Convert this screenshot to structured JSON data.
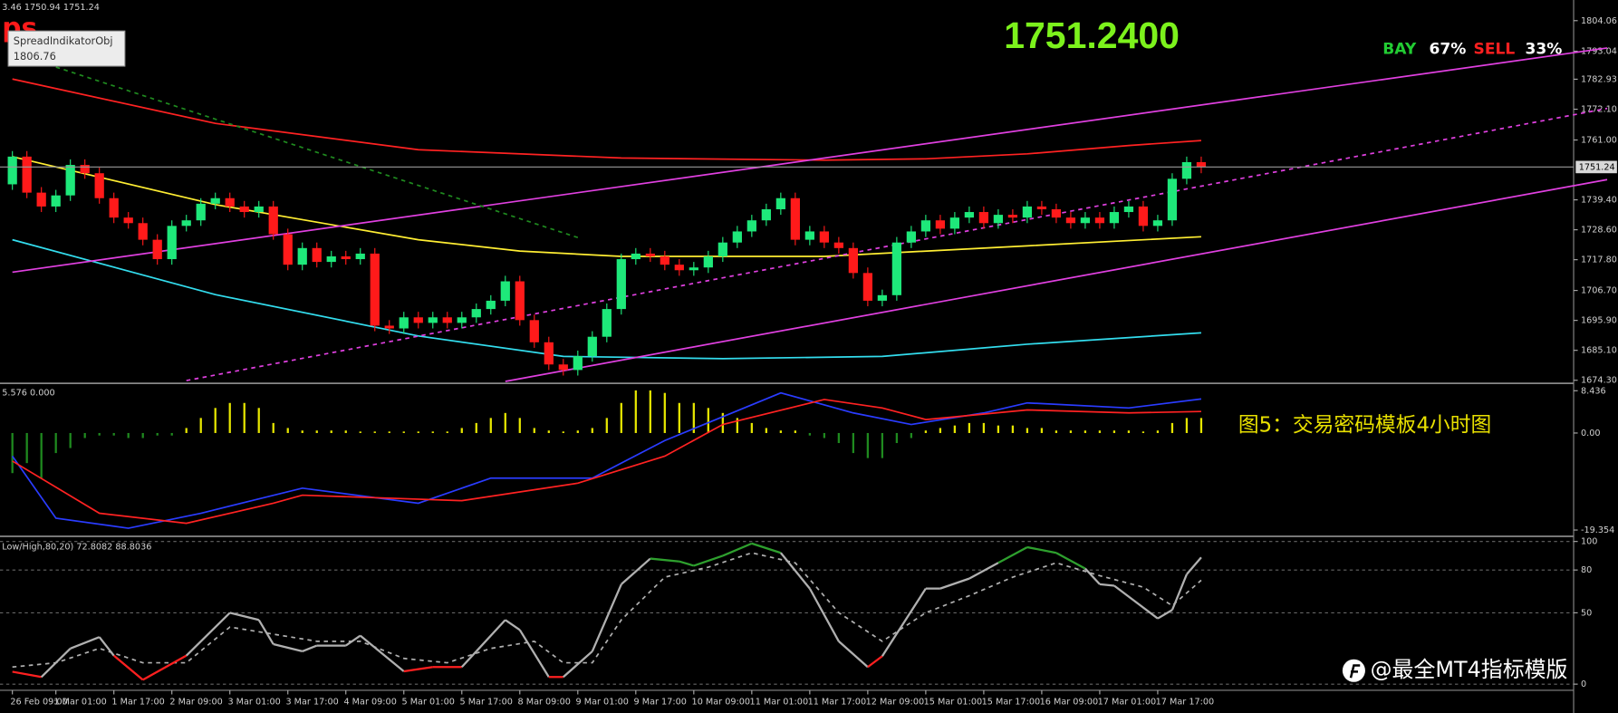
{
  "chart_data": [
    {
      "type": "candlestick",
      "header": "3.46 1750.94 1751.24",
      "indicator_label": "ps",
      "tooltip": {
        "title": "SpreadIndikatorObj",
        "value": "1806.76"
      },
      "price_display": "1751.2400",
      "sentiment": {
        "buy_label": "BAY",
        "buy": {
          "value": 67,
          "label": "67%"
        },
        "sell_label": "SELL",
        "sell": {
          "value": 33,
          "label": "33%"
        }
      },
      "categories": [
        "26 Feb 09:00",
        null,
        null,
        "1 Mar 01:00",
        null,
        null,
        null,
        "1 Mar 17:00",
        null,
        null,
        null,
        "2 Mar 09:00",
        null,
        null,
        null,
        "3 Mar 01:00",
        null,
        null,
        null,
        "3 Mar 17:00",
        null,
        null,
        null,
        "4 Mar 09:00",
        null,
        null,
        null,
        "5 Mar 01:00",
        null,
        null,
        null,
        "5 Mar 17:00",
        null,
        null,
        null,
        "8 Mar 09:00",
        null,
        null,
        null,
        "9 Mar 01:00",
        null,
        null,
        null,
        "9 Mar 17:00",
        null,
        null,
        null,
        "10 Mar 09:00",
        null,
        null,
        null,
        "11 Mar 01:00",
        null,
        null,
        null,
        "11 Mar 17:00",
        null,
        null,
        null,
        "12 Mar 09:00",
        null,
        null,
        null,
        "15 Mar 01:00",
        null,
        null,
        null,
        "15 Mar 17:00",
        null,
        null,
        null,
        "16 Mar 09:00",
        null,
        null,
        null,
        "17 Mar 01:00",
        null,
        null,
        null,
        "17 Mar 17:00",
        null,
        null,
        null
      ],
      "open": [
        1745,
        1755,
        1742,
        1737,
        1741,
        1752,
        1749,
        1740,
        1733,
        1731,
        1725,
        1718,
        1730,
        1732,
        1738,
        1740,
        1737,
        1735,
        1737,
        1727,
        1716,
        1722,
        1717,
        1719,
        1718,
        1720,
        1694,
        1693,
        1697,
        1695,
        1697,
        1695,
        1697,
        1700,
        1703,
        1710,
        1696,
        1688,
        1680,
        1678,
        1683,
        1690,
        1700,
        1718,
        1720,
        1719,
        1716,
        1714,
        1715,
        1719,
        1724,
        1728,
        1732,
        1736,
        1740,
        1725,
        1728,
        1724,
        1722,
        1713,
        1703,
        1705,
        1724,
        1728,
        1732,
        1729,
        1733,
        1735,
        1731,
        1734,
        1733,
        1737,
        1736,
        1733,
        1731,
        1733,
        1731,
        1735,
        1737,
        1730,
        1732,
        1747,
        1753
      ],
      "high": [
        1757,
        1757,
        1744,
        1743,
        1754,
        1754,
        1751,
        1742,
        1735,
        1733,
        1727,
        1732,
        1734,
        1740,
        1742,
        1742,
        1739,
        1739,
        1739,
        1729,
        1724,
        1724,
        1721,
        1721,
        1722,
        1722,
        1696,
        1699,
        1699,
        1699,
        1699,
        1699,
        1702,
        1705,
        1712,
        1712,
        1698,
        1690,
        1682,
        1685,
        1692,
        1702,
        1720,
        1722,
        1722,
        1721,
        1718,
        1717,
        1721,
        1726,
        1730,
        1734,
        1738,
        1742,
        1742,
        1730,
        1730,
        1726,
        1724,
        1715,
        1707,
        1726,
        1730,
        1734,
        1734,
        1735,
        1737,
        1737,
        1736,
        1736,
        1739,
        1739,
        1738,
        1735,
        1735,
        1735,
        1737,
        1739,
        1739,
        1734,
        1749,
        1755,
        1755
      ],
      "low": [
        1743,
        1740,
        1735,
        1735,
        1739,
        1747,
        1738,
        1731,
        1729,
        1723,
        1716,
        1716,
        1728,
        1730,
        1736,
        1735,
        1733,
        1733,
        1725,
        1714,
        1714,
        1715,
        1715,
        1716,
        1716,
        1692,
        1691,
        1691,
        1693,
        1693,
        1693,
        1693,
        1695,
        1698,
        1701,
        1694,
        1686,
        1678,
        1676,
        1676,
        1681,
        1688,
        1698,
        1716,
        1717,
        1714,
        1712,
        1712,
        1713,
        1717,
        1722,
        1726,
        1730,
        1734,
        1723,
        1723,
        1722,
        1720,
        1711,
        1701,
        1701,
        1703,
        1722,
        1726,
        1727,
        1727,
        1731,
        1729,
        1729,
        1731,
        1731,
        1734,
        1731,
        1729,
        1729,
        1729,
        1729,
        1733,
        1728,
        1728,
        1730,
        1745,
        1749
      ],
      "close": [
        1755,
        1742,
        1737,
        1741,
        1752,
        1749,
        1740,
        1733,
        1731,
        1725,
        1718,
        1730,
        1732,
        1738,
        1740,
        1737,
        1735,
        1737,
        1727,
        1716,
        1722,
        1717,
        1719,
        1718,
        1720,
        1694,
        1693,
        1697,
        1695,
        1697,
        1695,
        1697,
        1700,
        1703,
        1710,
        1696,
        1688,
        1680,
        1678,
        1683,
        1690,
        1700,
        1718,
        1720,
        1719,
        1716,
        1714,
        1715,
        1719,
        1724,
        1728,
        1732,
        1736,
        1740,
        1725,
        1728,
        1724,
        1722,
        1713,
        1703,
        1705,
        1724,
        1728,
        1732,
        1729,
        1733,
        1735,
        1731,
        1734,
        1733,
        1737,
        1736,
        1733,
        1731,
        1733,
        1731,
        1735,
        1737,
        1730,
        1732,
        1747,
        1753,
        1751.24
      ],
      "up_color": "#1ee87a",
      "down_color": "#ff1a1a",
      "current_price": 1751.24,
      "overlays": [
        {
          "color": "#ff2222",
          "x": [
            0,
            14,
            28,
            42,
            56,
            63,
            70,
            77,
            82
          ],
          "values": [
            1783,
            1767,
            1757.5,
            1754.5,
            1753.7,
            1754.2,
            1756,
            1759,
            1760.8
          ]
        },
        {
          "color": "#ffee33",
          "x": [
            0,
            14,
            28,
            35,
            42,
            56,
            70,
            82
          ],
          "values": [
            1755,
            1737.7,
            1725,
            1720.9,
            1719,
            1719,
            1722.8,
            1726.1
          ]
        },
        {
          "color": "#33ddee",
          "x": [
            0,
            14,
            28,
            38,
            49,
            60,
            70,
            82
          ],
          "values": [
            1725,
            1705.2,
            1690.3,
            1682.9,
            1682.1,
            1682.9,
            1687.3,
            1691.4
          ]
        },
        {
          "color": "#e040e0",
          "x": [
            0,
            110
          ],
          "values": [
            1713.3,
            1794.2
          ]
        },
        {
          "color": "#e040e0",
          "x": [
            12,
            110
          ],
          "values": [
            1674.2,
            1772.4
          ],
          "dashed": true
        },
        {
          "color": "#e040e0",
          "x": [
            34,
            110
          ],
          "values": [
            1673.9,
            1746.7
          ]
        },
        {
          "color": "#1f8a1f",
          "x": [
            3,
            39
          ],
          "values": [
            1787.3,
            1725.8
          ],
          "dashed": true
        }
      ],
      "ylim": [
        1673.55,
        1811.51
      ],
      "yticks": [
        1804.06,
        1793.04,
        1782.93,
        {
          "value": 1772.1,
          "label": "1772.10"
        },
        {
          "value": 1761,
          "label": "1761.00"
        },
        {
          "value": 1739.4,
          "label": "1739.40"
        },
        {
          "value": 1728.6,
          "label": "1728.60"
        },
        {
          "value": 1717.8,
          "label": "1717.80"
        },
        {
          "value": 1706.7,
          "label": "1706.70"
        },
        {
          "value": 1695.9,
          "label": "1695.90"
        },
        {
          "value": 1685.1,
          "label": "1685.10"
        },
        {
          "value": 1674.3,
          "label": "1674.30"
        }
      ]
    },
    {
      "type": "oscillator",
      "header": "5.576 0.000",
      "annotation": "图5：交易密码模板4小时图",
      "values": [
        -8,
        -6,
        -9,
        -4,
        -3,
        -1,
        -0.5,
        -0.5,
        -1,
        -1,
        -0.5,
        -0.5,
        1,
        3,
        5,
        6,
        6,
        5,
        2,
        1,
        0.5,
        0.5,
        0.5,
        0.5,
        0.3,
        0.3,
        0.3,
        0.3,
        0.3,
        0.3,
        0.3,
        1,
        2,
        3,
        4,
        3,
        1,
        0.5,
        0.3,
        0.5,
        1,
        3,
        6,
        8.5,
        8.5,
        8,
        6,
        6,
        5,
        4,
        3,
        2,
        1,
        0.5,
        0.5,
        -0.5,
        -1,
        -2,
        -4,
        -5,
        -5,
        -2,
        -1,
        0.5,
        1,
        1.5,
        2,
        2,
        1.5,
        1.5,
        1,
        1,
        0.5,
        0.5,
        0.5,
        0.5,
        0.5,
        0.5,
        0.3,
        0.5,
        2,
        3,
        3
      ],
      "positive_color": "#e6e600",
      "negative_color": "#1f8a1f",
      "lines": [
        {
          "color": "#2a3cff",
          "x": [
            0,
            3,
            8,
            13,
            20,
            28,
            33,
            40,
            45,
            53,
            58,
            62,
            67,
            70,
            77,
            82
          ],
          "values": [
            -4.6,
            -17,
            -19,
            -16,
            -11,
            -14,
            -9,
            -9,
            -1.5,
            8,
            4,
            1.7,
            4,
            6,
            5,
            6.8
          ]
        },
        {
          "color": "#ff2222",
          "x": [
            0,
            6,
            12,
            18,
            20,
            31,
            39,
            45,
            49,
            56,
            60,
            63,
            70,
            77,
            82
          ],
          "values": [
            -5.6,
            -16,
            -18,
            -14,
            -12.4,
            -13.5,
            -10,
            -4.6,
            1.7,
            6.7,
            5,
            2.7,
            4.6,
            4,
            4.3
          ]
        }
      ],
      "ylim": [
        -20.4,
        9.7
      ],
      "yticks": [
        8.436,
        {
          "value": 0,
          "label": "0.00"
        },
        -19.354
      ]
    },
    {
      "type": "stochastic",
      "header": "Low/High,80,20) 72.8082 88.8036",
      "upper_level": 80,
      "lower_level": 20,
      "color": "#b0b0b0",
      "upper_color": "#2ea02e",
      "lower_color": "#ff2020",
      "x": [
        0,
        2,
        4,
        6,
        7,
        9,
        12,
        15,
        17,
        18,
        20,
        21,
        23,
        24,
        27,
        29,
        31,
        32,
        34,
        35,
        37,
        38,
        40,
        42,
        44,
        46,
        47,
        49,
        51,
        53,
        55,
        57,
        59,
        60,
        63,
        64,
        66,
        68,
        70,
        72,
        74,
        75,
        76,
        79,
        80,
        81,
        82
      ],
      "values": [
        8.7,
        5,
        25,
        33,
        20,
        3,
        20,
        50,
        45,
        28,
        23,
        27,
        27,
        34,
        9,
        12,
        12,
        23,
        45,
        38,
        5,
        5,
        23,
        70,
        88,
        86,
        83,
        90,
        98.6,
        92,
        67,
        30,
        12,
        19.6,
        67,
        67,
        74,
        85,
        96,
        92,
        81,
        70,
        69,
        46,
        52,
        77,
        88.8036
      ],
      "signal": {
        "color": "#b0b0b0",
        "x": [
          0,
          3,
          6,
          9,
          12,
          15,
          18,
          21,
          24,
          27,
          30,
          33,
          36,
          38,
          40,
          42,
          45,
          48,
          51,
          54,
          57,
          60,
          63,
          66,
          69,
          72,
          75,
          78,
          80,
          82
        ],
        "values": [
          12,
          15,
          25,
          15,
          15,
          40,
          35,
          30,
          30,
          18,
          15,
          25,
          30,
          15,
          15,
          45,
          75,
          82,
          92,
          85,
          50,
          30,
          50,
          62,
          75,
          85,
          76,
          68,
          55,
          72.8082
        ]
      },
      "ylim": [
        -4.3,
        102.9
      ],
      "yticks": [
        100,
        80,
        50,
        0
      ]
    }
  ],
  "watermark": "@最全MT4指标模版"
}
